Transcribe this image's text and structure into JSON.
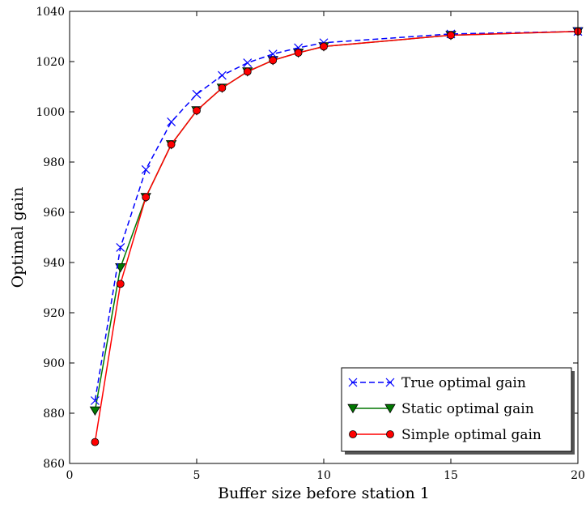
{
  "chart_data": {
    "type": "line",
    "xlabel": "Buffer size before station 1",
    "ylabel": "Optimal gain",
    "xlim": [
      0,
      20
    ],
    "ylim": [
      860,
      1040
    ],
    "xticks": [
      0,
      5,
      10,
      15,
      20
    ],
    "yticks": [
      860,
      880,
      900,
      920,
      940,
      960,
      980,
      1000,
      1020,
      1040
    ],
    "grid": false,
    "legend_position": "lower-right",
    "series": [
      {
        "name": "True optimal gain",
        "color": "#0000ff",
        "line": "dashed",
        "marker": "x",
        "x": [
          1,
          2,
          3,
          4,
          5,
          6,
          7,
          8,
          9,
          10,
          15,
          20
        ],
        "y": [
          885,
          946,
          977,
          996,
          1007,
          1014.5,
          1019.5,
          1023,
          1025.5,
          1027.5,
          1031,
          1032
        ]
      },
      {
        "name": "Static optimal gain",
        "color": "#007700",
        "line": "solid",
        "marker": "triangle-down",
        "x": [
          1,
          2,
          3,
          4,
          5,
          6,
          7,
          8,
          9,
          10,
          15,
          20
        ],
        "y": [
          881,
          938,
          966,
          987,
          1000.5,
          1009.5,
          1016,
          1020.5,
          1023.5,
          1026,
          1030.5,
          1032
        ]
      },
      {
        "name": "Simple optimal gain",
        "color": "#ff0000",
        "line": "solid",
        "marker": "circle",
        "x": [
          1,
          2,
          3,
          4,
          5,
          6,
          7,
          8,
          9,
          10,
          15,
          20
        ],
        "y": [
          868.5,
          931.5,
          966,
          987,
          1000.5,
          1009.5,
          1016,
          1020.5,
          1023.5,
          1026,
          1030.5,
          1032
        ]
      }
    ]
  }
}
